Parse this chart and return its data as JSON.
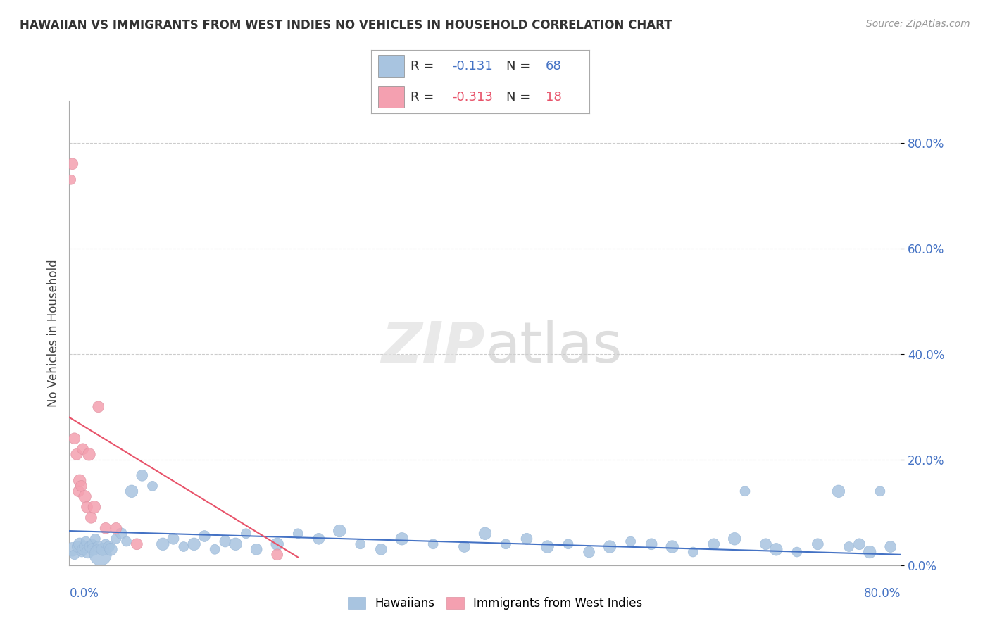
{
  "title": "HAWAIIAN VS IMMIGRANTS FROM WEST INDIES NO VEHICLES IN HOUSEHOLD CORRELATION CHART",
  "source": "Source: ZipAtlas.com",
  "ylabel": "No Vehicles in Household",
  "ytick_labels": [
    "0.0%",
    "20.0%",
    "40.0%",
    "60.0%",
    "80.0%"
  ],
  "ytick_values": [
    0,
    20,
    40,
    60,
    80
  ],
  "xlim": [
    0,
    80
  ],
  "ylim": [
    0,
    88
  ],
  "legend_r1_text": "R = -0.131   N = 68",
  "legend_r2_text": "R = -0.313   N = 18",
  "hawaiian_color": "#a8c4e0",
  "west_indies_color": "#f4a0b0",
  "hawaiian_line_color": "#4472c4",
  "west_indies_line_color": "#e8536a",
  "legend_text_color": "#333333",
  "r_value_color": "#4472c4",
  "n_value_color": "#4472c4",
  "hawaiian_x": [
    0.3,
    0.5,
    0.8,
    1.0,
    1.2,
    1.3,
    1.5,
    1.6,
    1.8,
    2.0,
    2.2,
    2.3,
    2.5,
    2.8,
    3.0,
    3.2,
    3.5,
    3.8,
    4.0,
    4.5,
    5.0,
    5.5,
    6.0,
    7.0,
    8.0,
    9.0,
    10.0,
    11.0,
    12.0,
    13.0,
    14.0,
    15.0,
    16.0,
    17.0,
    18.0,
    20.0,
    22.0,
    24.0,
    26.0,
    28.0,
    30.0,
    32.0,
    35.0,
    38.0,
    40.0,
    42.0,
    44.0,
    46.0,
    48.0,
    50.0,
    52.0,
    54.0,
    56.0,
    58.0,
    60.0,
    62.0,
    64.0,
    65.0,
    67.0,
    68.0,
    70.0,
    72.0,
    74.0,
    75.0,
    76.0,
    77.0,
    78.0,
    79.0
  ],
  "hawaiian_y": [
    3.0,
    2.0,
    3.5,
    4.0,
    2.5,
    3.0,
    3.5,
    4.5,
    2.5,
    3.5,
    4.0,
    3.0,
    5.0,
    3.5,
    2.0,
    3.0,
    4.0,
    3.5,
    3.0,
    5.0,
    6.0,
    4.5,
    14.0,
    17.0,
    15.0,
    4.0,
    5.0,
    3.5,
    4.0,
    5.5,
    3.0,
    4.5,
    4.0,
    6.0,
    3.0,
    4.0,
    6.0,
    5.0,
    6.5,
    4.0,
    3.0,
    5.0,
    4.0,
    3.5,
    6.0,
    4.0,
    5.0,
    3.5,
    4.0,
    2.5,
    3.5,
    4.5,
    4.0,
    3.5,
    2.5,
    4.0,
    5.0,
    14.0,
    4.0,
    3.0,
    2.5,
    4.0,
    14.0,
    3.5,
    4.0,
    2.5,
    14.0,
    3.5
  ],
  "hawaiian_sizes": [
    200,
    100,
    130,
    160,
    100,
    130,
    130,
    100,
    160,
    130,
    100,
    160,
    100,
    130,
    500,
    160,
    100,
    130,
    160,
    100,
    130,
    100,
    160,
    130,
    100,
    160,
    130,
    100,
    160,
    130,
    100,
    130,
    160,
    100,
    130,
    160,
    100,
    130,
    160,
    100,
    130,
    160,
    100,
    130,
    160,
    100,
    130,
    160,
    100,
    130,
    160,
    100,
    130,
    160,
    100,
    130,
    160,
    100,
    130,
    160,
    100,
    130,
    160,
    100,
    130,
    160,
    100,
    130
  ],
  "west_indies_x": [
    0.15,
    0.3,
    0.5,
    0.7,
    0.9,
    1.0,
    1.15,
    1.3,
    1.5,
    1.7,
    1.9,
    2.1,
    2.4,
    2.8,
    3.5,
    4.5,
    6.5,
    20.0
  ],
  "west_indies_y": [
    73.0,
    76.0,
    24.0,
    21.0,
    14.0,
    16.0,
    15.0,
    22.0,
    13.0,
    11.0,
    21.0,
    9.0,
    11.0,
    30.0,
    7.0,
    7.0,
    4.0,
    2.0
  ],
  "west_indies_sizes": [
    100,
    130,
    130,
    130,
    130,
    160,
    130,
    130,
    160,
    130,
    160,
    130,
    160,
    130,
    130,
    130,
    130,
    130
  ],
  "haw_trend_x": [
    0,
    80
  ],
  "haw_trend_y": [
    6.5,
    2.0
  ],
  "wi_trend_x": [
    0,
    22
  ],
  "wi_trend_y": [
    28.0,
    1.5
  ]
}
